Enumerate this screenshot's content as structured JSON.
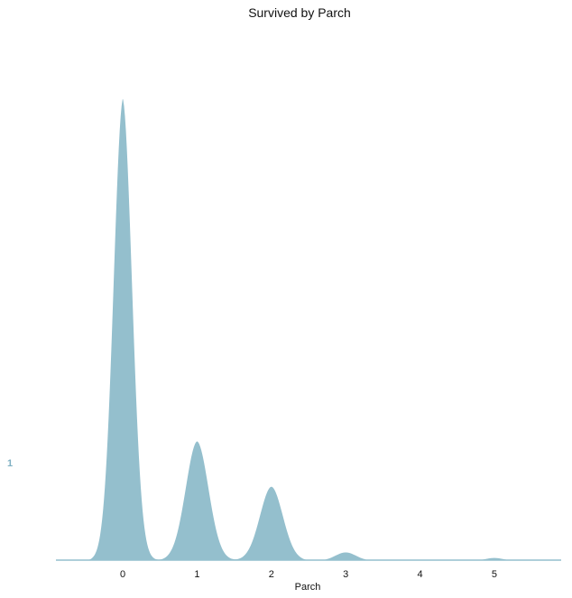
{
  "chart_data": {
    "type": "area",
    "title": "Survived by Parch",
    "xlabel": "Parch",
    "ylabel": "",
    "x_ticks": [
      0,
      1,
      2,
      3,
      4,
      5
    ],
    "xlim": [
      -0.9,
      5.9
    ],
    "ylim": [
      0,
      1
    ],
    "grid": false,
    "colors": {
      "fill": "#94bfcd",
      "stroke": "#ffffff",
      "series_label": "#7fb0c3"
    },
    "series": [
      {
        "label": "1",
        "peaks": [
          {
            "x": 0,
            "height": 1.0,
            "width": 0.13
          },
          {
            "x": 1,
            "height": 0.258,
            "width": 0.16
          },
          {
            "x": 2,
            "height": 0.16,
            "width": 0.16
          },
          {
            "x": 3,
            "height": 0.018,
            "width": 0.14
          },
          {
            "x": 5,
            "height": 0.006,
            "width": 0.12
          }
        ],
        "support": [
          -0.6,
          5.9
        ]
      }
    ]
  }
}
